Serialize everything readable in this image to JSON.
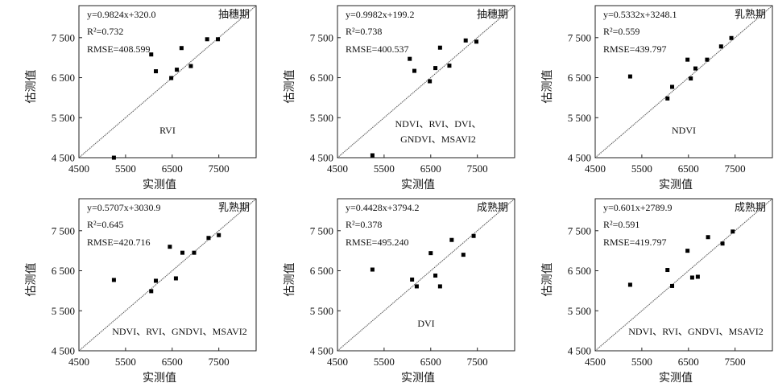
{
  "axis": {
    "xlabel": "实测值",
    "ylabel": "估测值",
    "xticks": [
      "4500",
      "5500",
      "6500",
      "7500"
    ],
    "yticks": [
      "4 500",
      "5 500",
      "6 500",
      "7 500"
    ],
    "xlim": [
      4500,
      8300
    ],
    "ylim": [
      4500,
      8300
    ]
  },
  "chart_data": [
    {
      "type": "scatter",
      "stage": "抽穗期",
      "indices": [
        "RVI"
      ],
      "equation": "y=0.9824x+320.0",
      "r2": "R²=0.732",
      "rmse": "RMSE=408.599",
      "points": [
        [
          5250,
          4500
        ],
        [
          6050,
          7080
        ],
        [
          6150,
          6660
        ],
        [
          6480,
          6490
        ],
        [
          6600,
          6700
        ],
        [
          6700,
          7240
        ],
        [
          6900,
          6790
        ],
        [
          7250,
          7460
        ],
        [
          7480,
          7460
        ]
      ]
    },
    {
      "type": "scatter",
      "stage": "抽穗期",
      "indices": [
        "NDVI",
        "RVI",
        "DVI",
        "GNDVI",
        "MSAVI2"
      ],
      "equation": "y=0.9982x+199.2",
      "r2": "R²=0.738",
      "rmse": "RMSE=400.537",
      "points": [
        [
          5250,
          4560
        ],
        [
          6050,
          6970
        ],
        [
          6150,
          6670
        ],
        [
          6480,
          6410
        ],
        [
          6600,
          6740
        ],
        [
          6700,
          7250
        ],
        [
          6900,
          6800
        ],
        [
          7250,
          7430
        ],
        [
          7480,
          7400
        ]
      ]
    },
    {
      "type": "scatter",
      "stage": "乳熟期",
      "indices": [
        "NDVI"
      ],
      "equation": "y=0.5332x+3248.1",
      "r2": "R²=0.559",
      "rmse": "RMSE=439.797",
      "points": [
        [
          5250,
          6530
        ],
        [
          6050,
          5980
        ],
        [
          6150,
          6270
        ],
        [
          6480,
          6950
        ],
        [
          6550,
          6480
        ],
        [
          6650,
          6730
        ],
        [
          6900,
          6950
        ],
        [
          7200,
          7280
        ],
        [
          7420,
          7490
        ]
      ]
    },
    {
      "type": "scatter",
      "stage": "乳熟期",
      "indices": [
        "NDVI",
        "RVI",
        "GNDVI",
        "MSAVI2"
      ],
      "equation": "y=0.5707x+3030.9",
      "r2": "R²=0.645",
      "rmse": "RMSE=420.716",
      "points": [
        [
          5250,
          6270
        ],
        [
          6050,
          5990
        ],
        [
          6150,
          6250
        ],
        [
          6450,
          7100
        ],
        [
          6580,
          6310
        ],
        [
          6720,
          6950
        ],
        [
          6970,
          6950
        ],
        [
          7280,
          7320
        ],
        [
          7500,
          7390
        ]
      ]
    },
    {
      "type": "scatter",
      "stage": "成熟期",
      "indices": [
        "DVI"
      ],
      "equation": "y=0.4428x+3794.2",
      "r2": "R²=0.378",
      "rmse": "RMSE=495.240",
      "points": [
        [
          5250,
          6530
        ],
        [
          6100,
          6280
        ],
        [
          6200,
          6110
        ],
        [
          6500,
          6940
        ],
        [
          6600,
          6380
        ],
        [
          6700,
          6110
        ],
        [
          6950,
          7270
        ],
        [
          7200,
          6900
        ],
        [
          7420,
          7370
        ]
      ]
    },
    {
      "type": "scatter",
      "stage": "成熟期",
      "indices": [
        "NDVI",
        "RVI",
        "GNDVI",
        "MSAVI2"
      ],
      "equation": "y=0.601x+2789.9",
      "r2": "R²=0.591",
      "rmse": "RMSE=419.797",
      "points": [
        [
          5250,
          6150
        ],
        [
          6050,
          6520
        ],
        [
          6150,
          6120
        ],
        [
          6480,
          7000
        ],
        [
          6580,
          6330
        ],
        [
          6700,
          6350
        ],
        [
          6920,
          7340
        ],
        [
          7230,
          7180
        ],
        [
          7450,
          7480
        ]
      ]
    }
  ]
}
